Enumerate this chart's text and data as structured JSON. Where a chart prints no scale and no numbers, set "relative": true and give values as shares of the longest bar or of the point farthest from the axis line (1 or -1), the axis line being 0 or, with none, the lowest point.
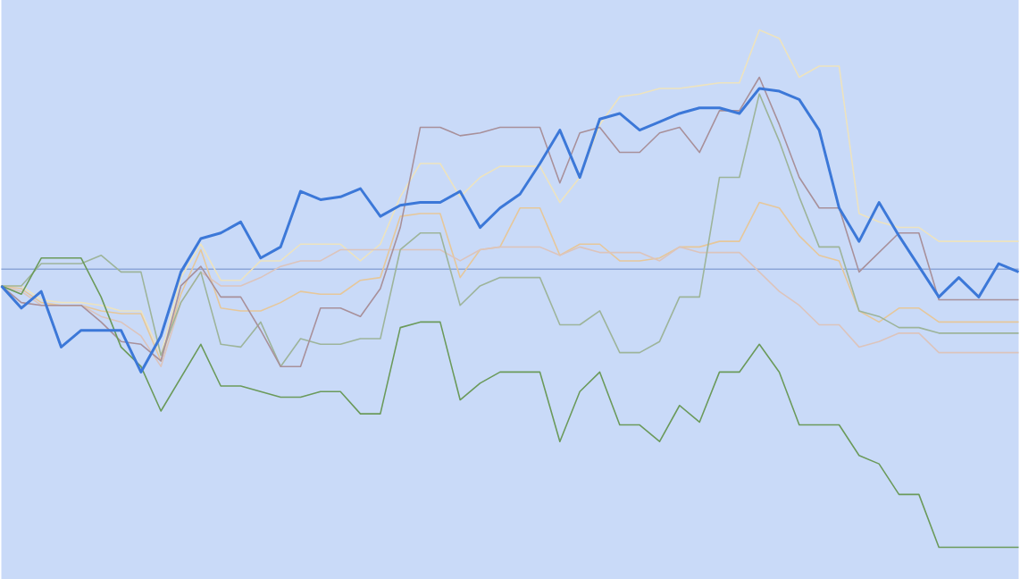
{
  "chart_data": {
    "type": "line",
    "relative": true,
    "marker": "none",
    "line_style": "solid",
    "ref_lines": [
      {
        "axis": "y",
        "value": 0,
        "color": "#8ca5d7"
      }
    ],
    "categories": [
      null,
      null,
      null,
      null,
      null,
      null,
      null,
      null,
      null,
      null,
      null,
      null,
      null,
      null,
      null,
      null,
      null,
      null,
      null,
      null,
      null,
      null,
      null,
      null,
      null,
      null,
      null,
      null,
      null,
      null,
      null,
      null,
      null,
      null,
      null,
      null,
      null,
      null,
      null,
      null,
      null,
      null,
      null,
      null,
      null,
      null,
      null,
      null,
      null,
      null,
      null,
      null
    ],
    "series": [
      {
        "color": "#ede3bf",
        "values": [
          -0.06,
          -0.06,
          -0.11,
          -0.12,
          -0.12,
          -0.13,
          -0.15,
          -0.15,
          -0.31,
          -0.03,
          0.09,
          -0.04,
          -0.04,
          0.03,
          0.03,
          0.09,
          0.09,
          0.09,
          0.03,
          0.09,
          0.26,
          0.38,
          0.38,
          0.26,
          0.33,
          0.37,
          0.37,
          0.37,
          0.24,
          0.33,
          0.52,
          0.62,
          0.63,
          0.65,
          0.65,
          0.66,
          0.67,
          0.67,
          0.86,
          0.83,
          0.69,
          0.73,
          0.73,
          0.2,
          0.17,
          0.15,
          0.15,
          0.1,
          0.1,
          0.1,
          0.1,
          0.1
        ]
      },
      {
        "color": "#e6c79a",
        "values": [
          -0.06,
          -0.07,
          -0.12,
          -0.13,
          -0.13,
          -0.15,
          -0.16,
          -0.16,
          -0.33,
          -0.09,
          0.07,
          -0.14,
          -0.15,
          -0.15,
          -0.12,
          -0.08,
          -0.09,
          -0.09,
          -0.04,
          -0.03,
          0.19,
          0.2,
          0.2,
          -0.03,
          0.07,
          0.08,
          0.22,
          0.22,
          0.05,
          0.09,
          0.09,
          0.03,
          0.03,
          0.04,
          0.08,
          0.08,
          0.1,
          0.1,
          0.24,
          0.22,
          0.12,
          0.05,
          0.03,
          -0.15,
          -0.19,
          -0.14,
          -0.14,
          -0.19,
          -0.19,
          -0.19,
          -0.19,
          -0.19
        ]
      },
      {
        "color": "#dcc4bc",
        "values": [
          -0.06,
          -0.08,
          -0.13,
          -0.13,
          -0.13,
          -0.17,
          -0.19,
          -0.24,
          -0.35,
          -0.12,
          -0.01,
          -0.06,
          -0.06,
          -0.03,
          0.01,
          0.03,
          0.03,
          0.07,
          0.07,
          0.07,
          0.07,
          0.07,
          0.07,
          0.03,
          0.07,
          0.08,
          0.08,
          0.08,
          0.05,
          0.08,
          0.06,
          0.06,
          0.06,
          0.03,
          0.08,
          0.06,
          0.06,
          0.06,
          -0.01,
          -0.08,
          -0.13,
          -0.2,
          -0.2,
          -0.28,
          -0.26,
          -0.23,
          -0.23,
          -0.3,
          -0.3,
          -0.3,
          -0.3,
          -0.3
        ]
      },
      {
        "color": "#9db49a",
        "values": [
          -0.06,
          -0.06,
          0.02,
          0.02,
          0.02,
          0.05,
          -0.01,
          -0.01,
          -0.31,
          -0.12,
          -0.01,
          -0.27,
          -0.28,
          -0.19,
          -0.35,
          -0.25,
          -0.27,
          -0.27,
          -0.25,
          -0.25,
          0.07,
          0.13,
          0.13,
          -0.13,
          -0.06,
          -0.03,
          -0.03,
          -0.03,
          -0.2,
          -0.2,
          -0.15,
          -0.3,
          -0.3,
          -0.26,
          -0.1,
          -0.1,
          0.33,
          0.33,
          0.63,
          0.46,
          0.26,
          0.08,
          0.08,
          -0.15,
          -0.17,
          -0.21,
          -0.21,
          -0.23,
          -0.23,
          -0.23,
          -0.23,
          -0.23
        ]
      },
      {
        "color": "#a8909a",
        "values": [
          -0.06,
          -0.12,
          -0.13,
          -0.13,
          -0.13,
          -0.19,
          -0.26,
          -0.27,
          -0.33,
          -0.06,
          0.01,
          -0.1,
          -0.1,
          -0.22,
          -0.35,
          -0.35,
          -0.14,
          -0.14,
          -0.17,
          -0.07,
          0.15,
          0.51,
          0.51,
          0.48,
          0.49,
          0.51,
          0.51,
          0.51,
          0.31,
          0.49,
          0.51,
          0.42,
          0.42,
          0.49,
          0.51,
          0.42,
          0.57,
          0.57,
          0.69,
          0.52,
          0.33,
          0.22,
          0.22,
          -0.01,
          0.06,
          0.13,
          0.13,
          -0.11,
          -0.11,
          -0.11,
          -0.11,
          -0.11
        ]
      },
      {
        "color": "#6b9a5b",
        "values": [
          -0.06,
          -0.09,
          0.04,
          0.04,
          0.04,
          -0.1,
          -0.28,
          -0.35,
          -0.51,
          -0.39,
          -0.27,
          -0.42,
          -0.42,
          -0.44,
          -0.46,
          -0.46,
          -0.44,
          -0.44,
          -0.52,
          -0.52,
          -0.21,
          -0.19,
          -0.19,
          -0.47,
          -0.41,
          -0.37,
          -0.37,
          -0.37,
          -0.62,
          -0.44,
          -0.37,
          -0.56,
          -0.56,
          -0.62,
          -0.49,
          -0.55,
          -0.37,
          -0.37,
          -0.27,
          -0.37,
          -0.56,
          -0.56,
          -0.56,
          -0.67,
          -0.7,
          -0.81,
          -0.81,
          -1,
          -1,
          -1,
          -1,
          -1
        ]
      },
      {
        "color": "#3c78d8",
        "values": [
          -0.06,
          -0.14,
          -0.08,
          -0.28,
          -0.22,
          -0.22,
          -0.22,
          -0.37,
          -0.24,
          -0.01,
          0.11,
          0.13,
          0.17,
          0.04,
          0.08,
          0.28,
          0.25,
          0.26,
          0.29,
          0.19,
          0.23,
          0.24,
          0.24,
          0.28,
          0.15,
          0.22,
          0.27,
          0.38,
          0.5,
          0.33,
          0.54,
          0.56,
          0.5,
          0.53,
          0.56,
          0.58,
          0.58,
          0.56,
          0.65,
          0.64,
          0.61,
          0.5,
          0.22,
          0.1,
          0.24,
          0.12,
          0.01,
          -0.1,
          -0.03,
          -0.1,
          0.02,
          -0.01
        ]
      }
    ]
  }
}
